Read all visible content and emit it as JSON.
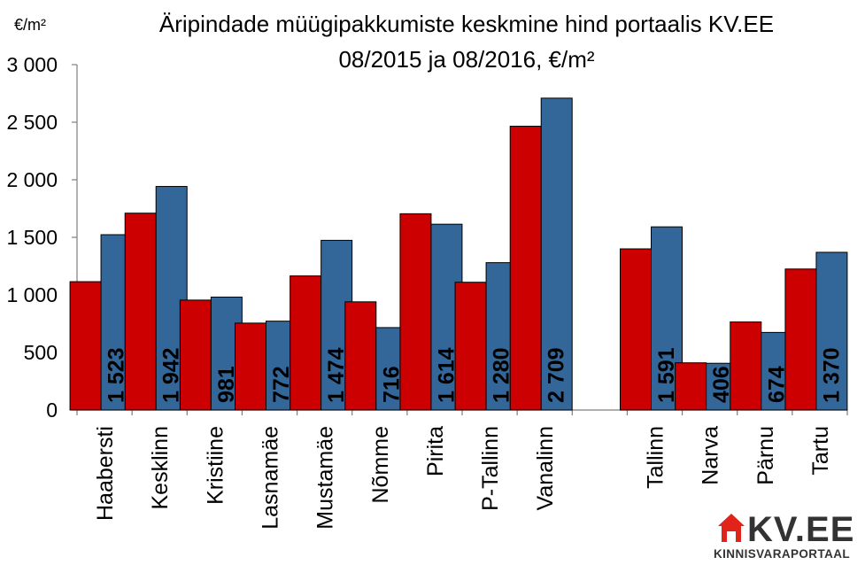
{
  "chart_data": {
    "type": "bar",
    "title": "Äripindade müügipakkumiste keskmine hind portaalis KV.EE",
    "subtitle": "08/2015 ja 08/2016, €/m²",
    "ylabel": "€/m²",
    "ylim": [
      0,
      3000
    ],
    "yticks": [
      0,
      500,
      1000,
      1500,
      2000,
      2500,
      3000
    ],
    "ytick_labels": [
      "0",
      "500",
      "1 000",
      "1 500",
      "2 000",
      "2 500",
      "3 000"
    ],
    "grid": false,
    "legend": "none",
    "categories": [
      "Haabersti",
      "Kesklinn",
      "Kristiine",
      "Lasnamäe",
      "Mustamäe",
      "Nõmme",
      "Pirita",
      "P-Tallinn",
      "Vanalinn",
      "",
      "Tallinn",
      "Narva",
      "Pärnu",
      "Tartu"
    ],
    "series": [
      {
        "values": [
          1115,
          1710,
          955,
          755,
          1165,
          940,
          1705,
          1110,
          2465,
          null,
          1400,
          410,
          765,
          1225
        ],
        "color": "#cc0000"
      },
      {
        "values": [
          1523,
          1942,
          981,
          772,
          1474,
          716,
          1614,
          1280,
          2709,
          null,
          1591,
          406,
          674,
          1370
        ],
        "labels": [
          "1 523",
          "1 942",
          "981",
          "772",
          "1 474",
          "716",
          "1 614",
          "1 280",
          "2 709",
          "",
          "1 591",
          "406",
          "674",
          "1 370"
        ],
        "color": "#336699"
      }
    ]
  },
  "brand": {
    "name": "KV.EE",
    "tagline": "KINNISVARAPORTAAL",
    "colors": {
      "red": "#e2231a",
      "dark": "#333333"
    }
  }
}
